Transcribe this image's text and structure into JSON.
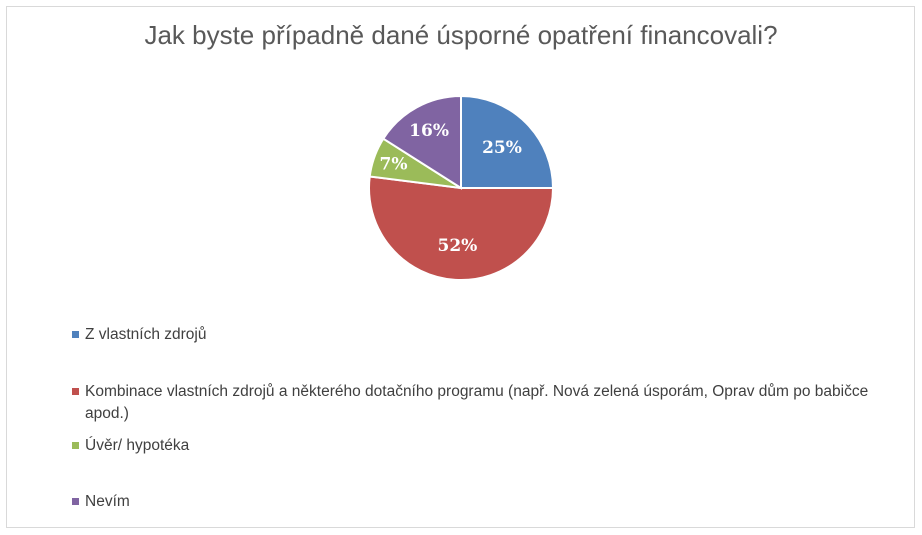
{
  "chart_data": {
    "type": "pie",
    "title": "Jak byste případně dané úsporné opatření financovali?",
    "slices": [
      {
        "label": "Z vlastních zdrojů",
        "value": 25,
        "display": "25%",
        "color": "#4f81bd"
      },
      {
        "label": "Kombinace vlastních zdrojů a některého dotačního programu (např. Nová zelená úsporám, Oprav dům po babičce apod.)",
        "value": 52,
        "display": "52%",
        "color": "#c0504d"
      },
      {
        "label": "Úvěr/ hypotéka",
        "value": 7,
        "display": "7%",
        "color": "#9bbb59"
      },
      {
        "label": "Nevím",
        "value": 16,
        "display": "16%",
        "color": "#8064a2"
      }
    ],
    "legend_position": "bottom"
  }
}
